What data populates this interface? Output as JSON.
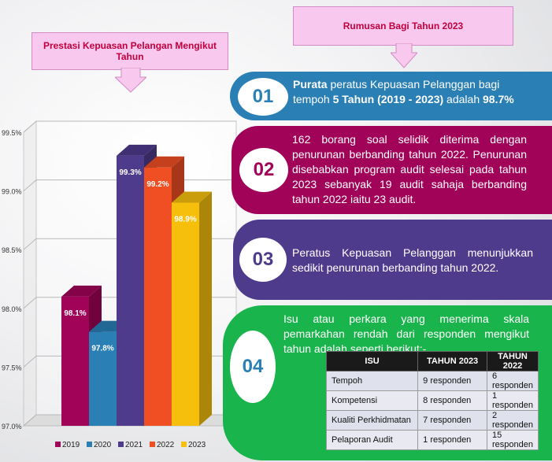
{
  "callouts": {
    "left": "Prestasi Kepuasan Pelangan Mengikut Tahun",
    "right": "Rumusan Bagi Tahun 2023"
  },
  "colors": {
    "band1": "#2a7fb5",
    "band2": "#a00358",
    "band3": "#4e3b8c",
    "band4": "#19b44b",
    "badge1_text": "#2a7fb5",
    "badge2_text": "#a00358",
    "badge3_text": "#4e3b8c",
    "badge4_text": "#2a7fb5"
  },
  "summary": [
    {
      "number": "01",
      "bold_lead": "Purata",
      "text_a": " peratus Kepuasan Pelanggan bagi tempoh ",
      "bold_a": "5 Tahun (2019 - 2023)",
      "text_b": " adalah ",
      "bold_b": "98.7%"
    },
    {
      "number": "02",
      "text": "162 borang soal selidik diterima dengan penurunan berbanding tahun 2022. Penurunan disebabkan program audit selesai pada tahun 2023 sebanyak 19 audit sahaja berbanding tahun 2022 iaitu 23 audit."
    },
    {
      "number": "03",
      "text": "Peratus Kepuasan Pelanggan menunjukkan sedikit penurunan berbanding tahun 2022."
    },
    {
      "number": "04",
      "text": "Isu atau perkara yang menerima skala pemarkahan rendah dari responden mengikut tahun adalah seperti berikut:-"
    }
  ],
  "issues_table": {
    "headers": [
      "ISU",
      "TAHUN 2023",
      "TAHUN 2022"
    ],
    "rows": [
      [
        "Tempoh",
        "9 responden",
        "6 responden"
      ],
      [
        "Kompetensi",
        "8 responden",
        "1 responden"
      ],
      [
        "Kualiti Perkhidmatan",
        "7 responden",
        "2 responden"
      ],
      [
        "Pelaporan Audit",
        "1 responden",
        "15 responden"
      ]
    ]
  },
  "chart_data": {
    "type": "bar",
    "categories": [
      "2019",
      "2020",
      "2021",
      "2022",
      "2023"
    ],
    "values": [
      98.1,
      97.8,
      99.3,
      99.2,
      98.9
    ],
    "data_labels": [
      "98.1%",
      "97.8%",
      "99.3%",
      "99.2%",
      "98.9%"
    ],
    "colors": [
      "#a00358",
      "#2a7fb5",
      "#4e3b8c",
      "#f04e23",
      "#f6bf0c"
    ],
    "ylim": [
      97.0,
      99.5
    ],
    "y_ticks": [
      "97.0%",
      "97.5%",
      "98.0%",
      "98.5%",
      "99.0%",
      "99.5%"
    ],
    "grid": true,
    "legend_position": "bottom",
    "three_d": true
  }
}
